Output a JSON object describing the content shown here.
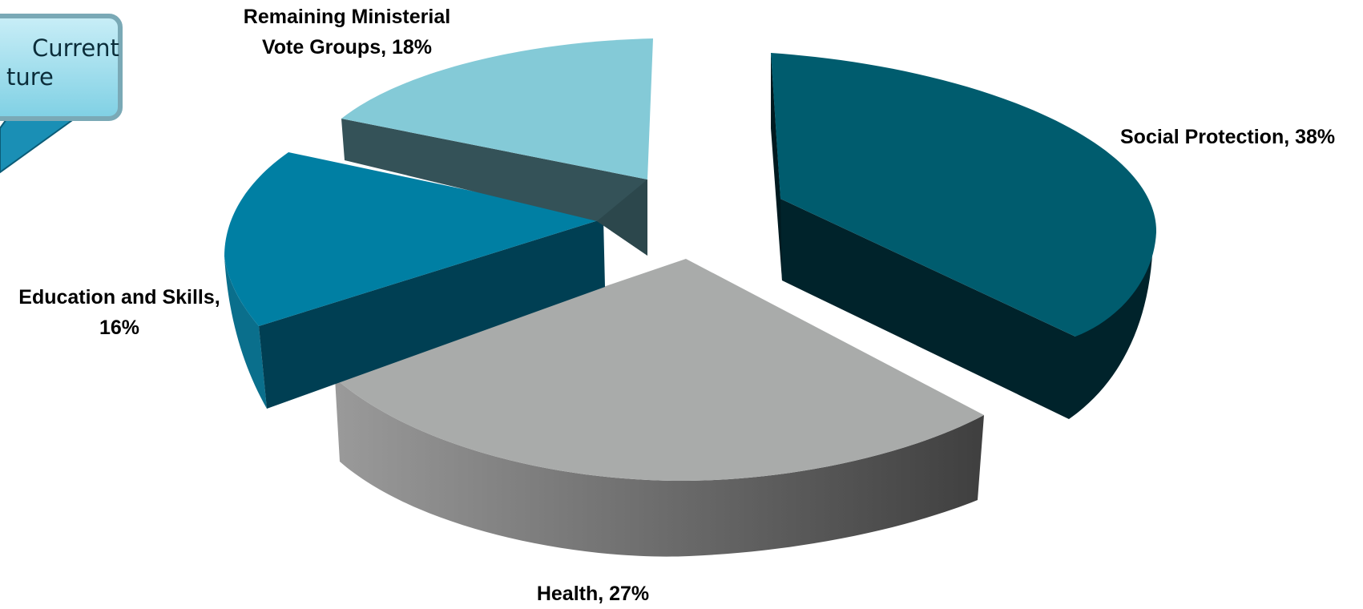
{
  "callout": {
    "line1": "Current",
    "line2": "ture"
  },
  "chart_data": {
    "type": "pie",
    "three_d": true,
    "exploded": true,
    "slices": [
      {
        "label": "Social Protection",
        "value": 38,
        "data_label": "Social Protection, 38%",
        "color": "#005C6E"
      },
      {
        "label": "Health",
        "value": 27,
        "data_label": "Health, 27%",
        "color": "#A9ABAA"
      },
      {
        "label": "Education and Skills",
        "value": 16,
        "data_label_line1": "Education and Skills,",
        "data_label_line2": "16%",
        "color": "#007FA3"
      },
      {
        "label": "Remaining Ministerial Vote Groups",
        "value": 18,
        "data_label_line1": "Remaining Ministerial",
        "data_label_line2": "Vote Groups, 18%",
        "color": "#84CAD7"
      }
    ]
  }
}
